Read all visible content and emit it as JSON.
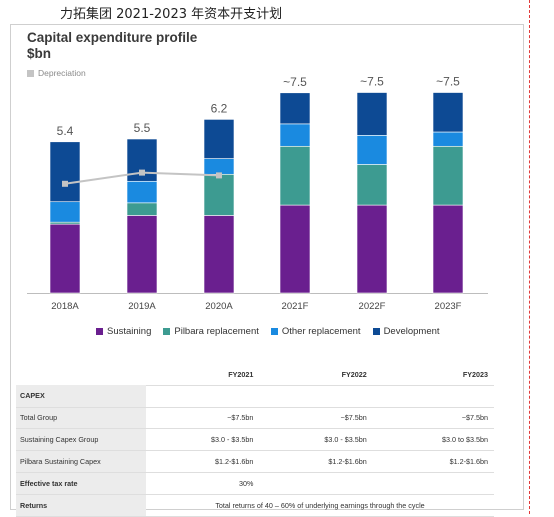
{
  "doc_title": "力拓集团 2021-2023 年资本开支计划",
  "chart_data": {
    "type": "bar",
    "stacked": true,
    "title_line1": "Capital expenditure profile",
    "title_line2": "$bn",
    "categories": [
      "2018A",
      "2019A",
      "2020A",
      "2021F",
      "2022F",
      "2023F"
    ],
    "totals": [
      "5.4",
      "5.5",
      "6.2",
      "~7.5",
      "~7.5",
      "~7.5"
    ],
    "series": [
      {
        "name": "Sustaining",
        "color": "#6a1f8f",
        "values": [
          2.46,
          2.77,
          2.77,
          3.14,
          3.14,
          3.14
        ]
      },
      {
        "name": "Pilbara replacement",
        "color": "#3d9b91",
        "values": [
          0.07,
          0.45,
          1.47,
          2.1,
          1.45,
          2.1
        ]
      },
      {
        "name": "Other replacement",
        "color": "#1a8ae0",
        "values": [
          0.73,
          0.77,
          0.56,
          0.8,
          1.04,
          0.51
        ]
      },
      {
        "name": "Development",
        "color": "#0d4a94",
        "values": [
          2.14,
          1.51,
          1.4,
          1.11,
          1.53,
          1.41
        ]
      }
    ],
    "depreciation": {
      "label": "Depreciation",
      "color": "#c4c4c4",
      "values": [
        3.9,
        4.3,
        4.2
      ]
    },
    "ylim": [
      0,
      7.5
    ]
  },
  "table": {
    "columns": [
      "FY2021",
      "FY2022",
      "FY2023"
    ],
    "section": "CAPEX",
    "rows": [
      {
        "label": "Total Group",
        "values": [
          "~$7.5bn",
          "~$7.5bn",
          "~$7.5bn"
        ]
      },
      {
        "label": "Sustaining Capex Group",
        "values": [
          "$3.0 - $3.5bn",
          "$3.0 - $3.5bn",
          "$3.0 to $3.5bn"
        ]
      },
      {
        "label": "Pilbara Sustaining Capex",
        "values": [
          "$1.2-$1.6bn",
          "$1.2-$1.6bn",
          "$1.2-$1.6bn"
        ]
      }
    ],
    "tax": {
      "label": "Effective tax rate",
      "value": "30%"
    },
    "returns": {
      "label": "Returns",
      "value": "Total returns of 40 – 60% of underlying earnings through the cycle"
    }
  }
}
